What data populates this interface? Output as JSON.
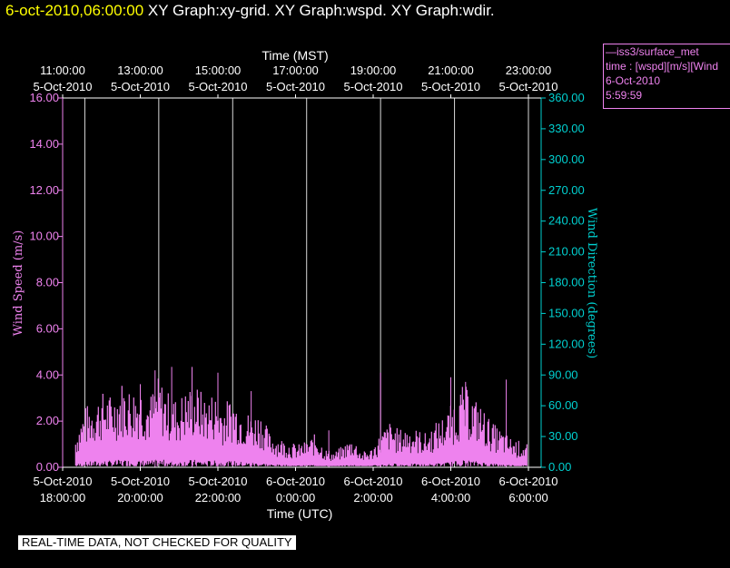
{
  "header": {
    "date": "6-oct-2010,06:00:00",
    "graphs": "XY Graph:xy-grid.  XY Graph:wspd.  XY Graph:wdir."
  },
  "legend": {
    "lines": [
      "—iss3/surface_met",
      "time : [wspd][m/s][Wind",
      "6-Oct-2010",
      "5:59:59"
    ]
  },
  "disclaimer": "REAL-TIME DATA, NOT CHECKED FOR QUALITY",
  "colors": {
    "wspd": "#ee82ee",
    "wdir": "#00d0d0",
    "axis": "#ffffff",
    "grid": "#ffffff"
  },
  "chart_data": {
    "type": "area",
    "top_axis": {
      "label": "Time (MST)",
      "ticks": [
        {
          "time": "11:00:00",
          "date": "5-Oct-2010"
        },
        {
          "time": "13:00:00",
          "date": "5-Oct-2010"
        },
        {
          "time": "15:00:00",
          "date": "5-Oct-2010"
        },
        {
          "time": "17:00:00",
          "date": "5-Oct-2010"
        },
        {
          "time": "19:00:00",
          "date": "5-Oct-2010"
        },
        {
          "time": "21:00:00",
          "date": "5-Oct-2010"
        },
        {
          "time": "23:00:00",
          "date": "5-Oct-2010"
        }
      ]
    },
    "bottom_axis": {
      "label": "Time (UTC)",
      "ticks": [
        {
          "date": "5-Oct-2010",
          "time": "18:00:00"
        },
        {
          "date": "5-Oct-2010",
          "time": "20:00:00"
        },
        {
          "date": "5-Oct-2010",
          "time": "22:00:00"
        },
        {
          "date": "6-Oct-2010",
          "time": "0:00:00"
        },
        {
          "date": "6-Oct-2010",
          "time": "2:00:00"
        },
        {
          "date": "6-Oct-2010",
          "time": "4:00:00"
        },
        {
          "date": "6-Oct-2010",
          "time": "6:00:00"
        }
      ]
    },
    "left_axis": {
      "label": "Wind Speed (m/s)",
      "range": [
        0,
        16
      ],
      "ticks": [
        "0.00",
        "2.00",
        "4.00",
        "6.00",
        "8.00",
        "10.00",
        "12.00",
        "14.00",
        "16.00"
      ]
    },
    "right_axis": {
      "label": "Wind Direction (degrees)",
      "range": [
        0,
        360
      ],
      "ticks": [
        "0.00",
        "30.00",
        "60.00",
        "90.00",
        "120.00",
        "150.00",
        "180.00",
        "210.00",
        "240.00",
        "270.00",
        "300.00",
        "330.00",
        "360.00"
      ]
    },
    "grid": "vertical",
    "series": [
      {
        "name": "iss3/surface_met wspd",
        "x_utc_hours": [
          17.75,
          18.0,
          18.25,
          18.5,
          18.75,
          19.0,
          19.25,
          19.5,
          19.75,
          20.0,
          20.25,
          20.5,
          20.75,
          21.0,
          21.25,
          21.5,
          21.75,
          22.0,
          22.25,
          22.5,
          22.75,
          23.0,
          23.25,
          23.5,
          23.75,
          24.0,
          24.25,
          24.5,
          24.75,
          25.0,
          25.25,
          25.5,
          25.75,
          26.0,
          26.25,
          26.5,
          26.75,
          27.0,
          27.25,
          27.5,
          27.75,
          28.0,
          28.25,
          28.5,
          28.75,
          29.0,
          29.25,
          29.5,
          29.75,
          30.0
        ],
        "values_ms": [
          0.9,
          1.6,
          1.8,
          2.0,
          1.9,
          2.3,
          2.1,
          2.2,
          1.9,
          2.4,
          2.0,
          1.8,
          2.1,
          2.2,
          1.9,
          2.0,
          1.7,
          1.9,
          1.6,
          1.4,
          1.5,
          0.9,
          0.8,
          0.7,
          0.6,
          0.7,
          0.9,
          0.5,
          0.4,
          0.6,
          0.8,
          0.4,
          0.5,
          0.9,
          1.2,
          1.0,
          1.1,
          1.0,
          0.9,
          1.2,
          1.4,
          1.8,
          2.2,
          1.9,
          1.6,
          1.2,
          1.0,
          0.8,
          0.7,
          0.6
        ]
      }
    ]
  }
}
